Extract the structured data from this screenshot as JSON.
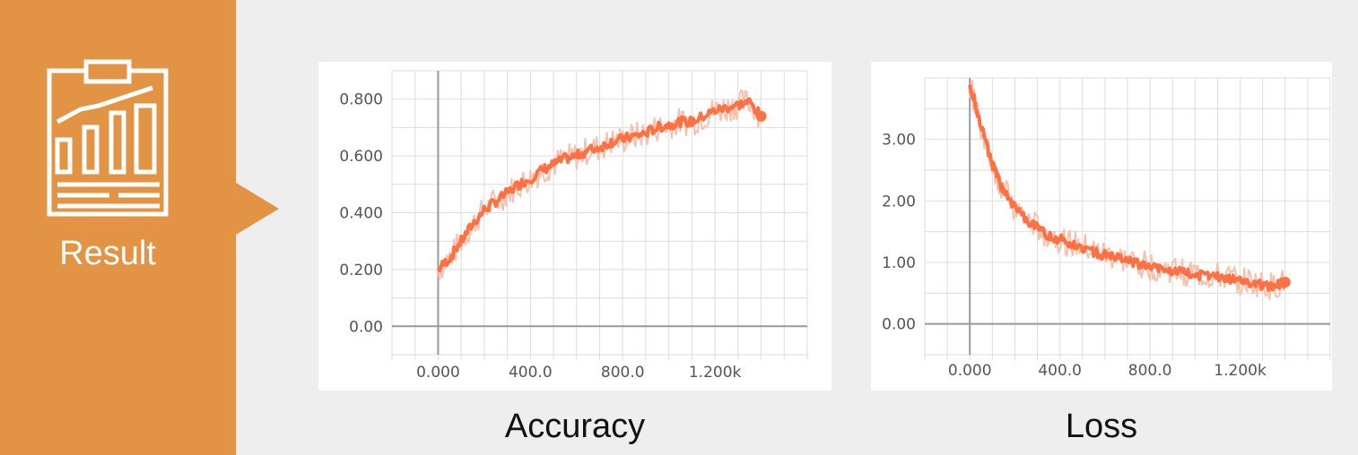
{
  "sidebar": {
    "label": "Result",
    "icon": "report-chart-icon",
    "color": "#e29343"
  },
  "colors": {
    "series": "#ff7043",
    "series_light": "#f5c2b0",
    "grid": "#dddddd",
    "axis": "#999999"
  },
  "chart_data": [
    {
      "type": "line",
      "caption": "Accuracy",
      "xlabel": "",
      "ylabel": "",
      "xlim": [
        -200,
        1600
      ],
      "ylim": [
        -0.1,
        0.9
      ],
      "x_ticks": [
        0,
        400,
        800,
        1200
      ],
      "x_tick_labels": [
        "0.000",
        "400.0",
        "800.0",
        "1.200k"
      ],
      "y_ticks": [
        0,
        0.2,
        0.4,
        0.6,
        0.8
      ],
      "y_tick_labels": [
        "0.00",
        "0.200",
        "0.400",
        "0.600",
        "0.800"
      ],
      "grid": true,
      "series": [
        {
          "x": [
            0,
            50,
            100,
            150,
            200,
            250,
            300,
            350,
            400,
            450,
            500,
            550,
            600,
            650,
            700,
            750,
            800,
            850,
            900,
            950,
            1000,
            1050,
            1100,
            1150,
            1200,
            1250,
            1300,
            1350,
            1400
          ],
          "y": [
            0.2,
            0.24,
            0.3,
            0.36,
            0.41,
            0.44,
            0.47,
            0.5,
            0.52,
            0.55,
            0.57,
            0.59,
            0.6,
            0.62,
            0.63,
            0.65,
            0.66,
            0.67,
            0.68,
            0.7,
            0.71,
            0.72,
            0.72,
            0.74,
            0.76,
            0.77,
            0.78,
            0.79,
            0.74
          ]
        }
      ]
    },
    {
      "type": "line",
      "caption": "Loss",
      "xlabel": "",
      "ylabel": "",
      "xlim": [
        -200,
        1600
      ],
      "ylim": [
        -0.5,
        4.0
      ],
      "x_ticks": [
        0,
        400,
        800,
        1200
      ],
      "x_tick_labels": [
        "0.000",
        "400.0",
        "800.0",
        "1.200k"
      ],
      "y_ticks": [
        0,
        1,
        2,
        3
      ],
      "y_tick_labels": [
        "0.00",
        "1.00",
        "2.00",
        "3.00"
      ],
      "grid": true,
      "series": [
        {
          "x": [
            0,
            30,
            60,
            90,
            120,
            150,
            200,
            250,
            300,
            350,
            400,
            450,
            500,
            550,
            600,
            650,
            700,
            750,
            800,
            850,
            900,
            950,
            1000,
            1050,
            1100,
            1150,
            1200,
            1250,
            1300,
            1350,
            1400
          ],
          "y": [
            3.9,
            3.5,
            3.1,
            2.7,
            2.4,
            2.15,
            1.9,
            1.7,
            1.55,
            1.45,
            1.38,
            1.3,
            1.25,
            1.18,
            1.12,
            1.07,
            1.02,
            0.98,
            0.94,
            0.9,
            0.87,
            0.84,
            0.81,
            0.78,
            0.76,
            0.73,
            0.71,
            0.68,
            0.62,
            0.6,
            0.68
          ]
        }
      ]
    }
  ]
}
